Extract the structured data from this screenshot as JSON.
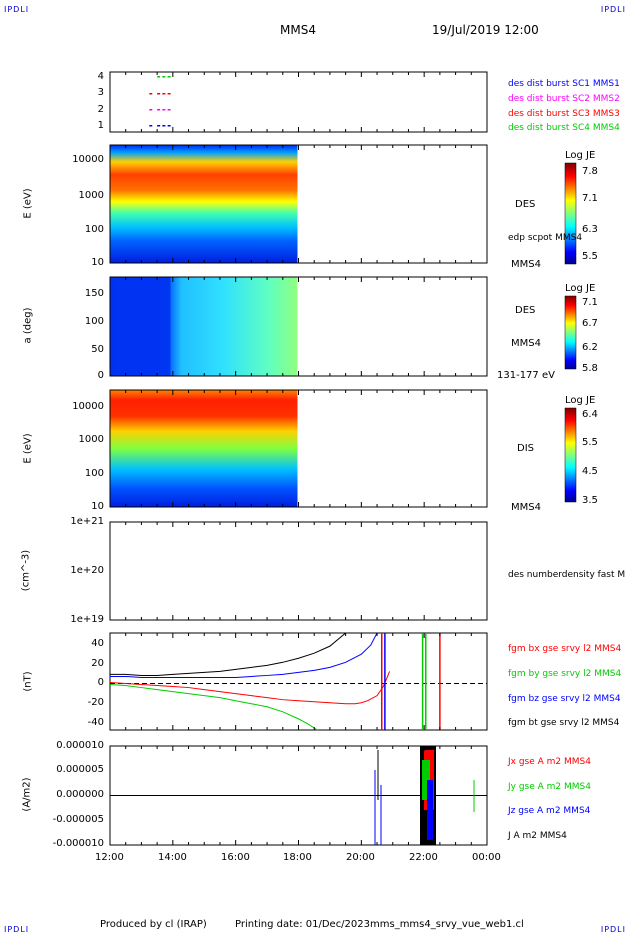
{
  "header": {
    "corner_tl": "IPDLI",
    "corner_tr": "IPDLI",
    "corner_bl": "IPDLI",
    "corner_br": "IPDLI",
    "title": "MMS4",
    "datetime": "19/Jul/2019 12:00"
  },
  "footer": {
    "produced_by": "Produced by cl (IRAP)",
    "printing_date": "Printing date: 01/Dec/2023",
    "filename": "mms_mms4_srvy_vue_web1.cl"
  },
  "colors": {
    "blue": "#0000ff",
    "magenta": "#ff00ff",
    "red": "#ff0000",
    "green": "#00cc00",
    "black": "#000000"
  },
  "chart_data": [
    {
      "panel": "availability",
      "type": "scatter",
      "yticks": [
        "4",
        "3",
        "2",
        "1"
      ],
      "legend": [
        {
          "label": "des dist burst SC1 MMS1",
          "color": "#0000ff"
        },
        {
          "label": "des dist burst SC2 MMS2",
          "color": "#ff00ff"
        },
        {
          "label": "des dist burst SC3 MMS3",
          "color": "#ff0000"
        },
        {
          "label": "des dist burst SC4 MMS4",
          "color": "#00cc00"
        }
      ],
      "series": [
        {
          "y": 4,
          "color": "#00cc00",
          "x": [
            "13:30",
            "13:40",
            "13:50"
          ]
        },
        {
          "y": 3,
          "color": "#ff0000",
          "x": [
            "13:15",
            "13:30",
            "13:40",
            "13:50"
          ]
        },
        {
          "y": 2,
          "color": "#ff00ff",
          "x": [
            "13:15",
            "13:30",
            "13:40",
            "13:50"
          ]
        },
        {
          "y": 1,
          "color": "#0000ff",
          "x": [
            "13:15",
            "13:30",
            "13:40",
            "13:50"
          ]
        }
      ]
    },
    {
      "panel": "des-energy",
      "type": "heatmap",
      "ylabel": "E (eV)",
      "yticks": [
        "10000",
        "1000",
        "100",
        "10"
      ],
      "right_label": "DES",
      "right_label_2": "edp scpot MMS4",
      "right_label_3": "MMS4",
      "colorbar": {
        "title": "Log JE",
        "ticks": [
          "7.8",
          "7.1",
          "6.3",
          "5.5"
        ],
        "range": [
          5.5,
          7.8
        ]
      },
      "data_end": "18:00"
    },
    {
      "panel": "des-pitch",
      "type": "heatmap",
      "ylabel": "a (deg)",
      "yticks": [
        "150",
        "100",
        "50",
        "0"
      ],
      "right_label": "DES",
      "right_label_2": "MMS4",
      "right_label_3": "131-177 eV",
      "colorbar": {
        "title": "Log JE",
        "ticks": [
          "7.1",
          "6.7",
          "6.2",
          "5.8"
        ],
        "range": [
          5.8,
          7.1
        ]
      },
      "data_end": "18:00"
    },
    {
      "panel": "dis-energy",
      "type": "heatmap",
      "ylabel": "E (eV)",
      "yticks": [
        "10000",
        "1000",
        "100",
        "10"
      ],
      "right_label": "DIS",
      "right_label_2": "MMS4",
      "colorbar": {
        "title": "Log JE",
        "ticks": [
          "6.4",
          "5.5",
          "4.5",
          "3.5"
        ],
        "range": [
          3.5,
          6.4
        ]
      },
      "data_end": "18:00"
    },
    {
      "panel": "density",
      "type": "line",
      "ylabel": "(cm^-3)",
      "yticks": [
        "1e+21",
        "1e+20",
        "1e+19"
      ],
      "right_label": "des numberdensity fast M"
    },
    {
      "panel": "magnetic-field",
      "type": "line",
      "ylabel": "(nT)",
      "yticks": [
        "40",
        "20",
        "0",
        "-20",
        "-40"
      ],
      "ylim": [
        -48,
        48
      ],
      "legend": [
        {
          "label": "fgm bx gse srvy l2 MMS4",
          "color": "#ff0000"
        },
        {
          "label": "fgm by gse srvy l2 MMS4",
          "color": "#00cc00"
        },
        {
          "label": "fgm bz gse srvy l2 MMS4",
          "color": "#0000ff"
        },
        {
          "label": "fgm bt gse srvy l2 MMS4",
          "color": "#000000"
        }
      ],
      "series": [
        {
          "name": "fgm bt gse srvy l2 MMS4",
          "color": "#000000",
          "x": [
            0,
            0.5,
            1,
            1.5,
            2,
            2.5,
            3,
            3.5,
            4,
            4.5,
            5,
            5.5,
            6,
            6.5,
            7,
            7.5
          ],
          "y": [
            7,
            7,
            6,
            6,
            7,
            8,
            9,
            10,
            12,
            14,
            16,
            19,
            23,
            28,
            35,
            48
          ]
        },
        {
          "name": "fgm bz gse srvy l2 MMS4",
          "color": "#0000ff",
          "x": [
            0,
            0.5,
            1,
            1.5,
            2,
            2.5,
            3,
            3.5,
            4,
            4.5,
            5,
            5.5,
            6,
            6.5,
            7,
            7.5,
            8,
            8.3,
            8.5
          ],
          "y": [
            5,
            5,
            4,
            4,
            4,
            4,
            4,
            4,
            4,
            5,
            6,
            7,
            9,
            11,
            14,
            19,
            27,
            36,
            48
          ]
        },
        {
          "name": "fgm bx gse srvy l2 MMS4",
          "color": "#ff0000",
          "x": [
            0,
            0.5,
            1,
            1.5,
            2,
            2.5,
            3,
            3.5,
            4,
            4.5,
            5,
            5.5,
            6,
            6.5,
            7,
            7.5,
            7.8,
            8,
            8.2,
            8.5,
            8.7,
            8.9
          ],
          "y": [
            -1,
            -2,
            -3,
            -4,
            -5,
            -6,
            -8,
            -10,
            -12,
            -14,
            -16,
            -18,
            -19,
            -20,
            -21,
            -22,
            -22,
            -21,
            -19,
            -14,
            -5,
            10
          ]
        },
        {
          "name": "fgm by gse srvy l2 MMS4",
          "color": "#00cc00",
          "x": [
            0,
            0.5,
            1,
            1.5,
            2,
            2.5,
            3,
            3.5,
            4,
            4.5,
            5,
            5.5,
            6,
            6.3,
            6.6
          ],
          "y": [
            -3,
            -4,
            -6,
            -8,
            -10,
            -12,
            -14,
            -16,
            -19,
            -22,
            -25,
            -30,
            -37,
            -42,
            -48
          ]
        }
      ],
      "spikes": [
        {
          "x": 8.65,
          "color": "#ff0000"
        },
        {
          "x": 8.75,
          "color": "#0000ff"
        },
        {
          "x": 9.95,
          "color": "#00cc00"
        },
        {
          "x": 10.05,
          "color": "#00cc00"
        },
        {
          "x": 10.5,
          "color": "#ff0000"
        }
      ]
    },
    {
      "panel": "current-density",
      "type": "line",
      "ylabel": "(A/m2)",
      "yticks": [
        "0.000010",
        "0.000005",
        "0.000000",
        "-0.000005",
        "-0.000010"
      ],
      "ylim": [
        -1e-05,
        1e-05
      ],
      "legend": [
        {
          "label": "Jx gse A m2 MMS4",
          "color": "#ff0000"
        },
        {
          "label": "Jy gse A m2 MMS4",
          "color": "#00cc00"
        },
        {
          "label": "Jz gse A m2 MMS4",
          "color": "#0000ff"
        },
        {
          "label": "J A m2 MMS4",
          "color": "#000000"
        }
      ]
    }
  ],
  "x_axis": {
    "ticks": [
      "12:00",
      "14:00",
      "16:00",
      "18:00",
      "20:00",
      "22:00",
      "00:00"
    ],
    "start": "12:00",
    "end": "00:00"
  }
}
